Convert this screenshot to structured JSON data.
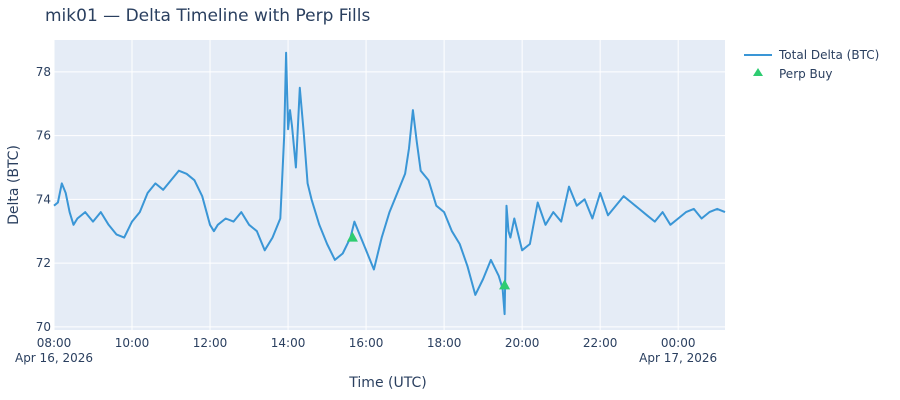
{
  "chart_data": {
    "type": "line",
    "title": "mik01 — Delta Timeline with Perp Fills",
    "xlabel": "Time (UTC)",
    "ylabel": "Delta (BTC)",
    "xlim": [
      8.0,
      25.2
    ],
    "ylim": [
      69.9,
      79.0
    ],
    "x_ticks": [
      {
        "x": 8,
        "label": "08:00",
        "sub": "Apr 16, 2026"
      },
      {
        "x": 10,
        "label": "10:00",
        "sub": ""
      },
      {
        "x": 12,
        "label": "12:00",
        "sub": ""
      },
      {
        "x": 14,
        "label": "14:00",
        "sub": ""
      },
      {
        "x": 16,
        "label": "16:00",
        "sub": ""
      },
      {
        "x": 18,
        "label": "18:00",
        "sub": ""
      },
      {
        "x": 20,
        "label": "20:00",
        "sub": ""
      },
      {
        "x": 22,
        "label": "22:00",
        "sub": ""
      },
      {
        "x": 24,
        "label": "00:00",
        "sub": "Apr 17, 2026"
      }
    ],
    "y_ticks": [
      70,
      72,
      74,
      76,
      78
    ],
    "colors": {
      "line": "#3a96d6",
      "marker": "#2ecc71",
      "plot_bg": "#e5ecf6",
      "grid": "#ffffff"
    },
    "series": [
      {
        "name": "Total Delta (BTC)",
        "kind": "line",
        "x": [
          8.0,
          8.1,
          8.2,
          8.3,
          8.4,
          8.5,
          8.6,
          8.8,
          9.0,
          9.2,
          9.4,
          9.6,
          9.8,
          10.0,
          10.2,
          10.4,
          10.6,
          10.8,
          11.0,
          11.2,
          11.4,
          11.6,
          11.8,
          12.0,
          12.1,
          12.2,
          12.4,
          12.6,
          12.8,
          13.0,
          13.2,
          13.4,
          13.6,
          13.8,
          13.9,
          13.95,
          14.0,
          14.05,
          14.1,
          14.2,
          14.3,
          14.4,
          14.5,
          14.6,
          14.8,
          15.0,
          15.2,
          15.4,
          15.6,
          15.7,
          15.8,
          16.0,
          16.2,
          16.4,
          16.6,
          16.8,
          17.0,
          17.1,
          17.2,
          17.3,
          17.4,
          17.6,
          17.8,
          18.0,
          18.2,
          18.4,
          18.6,
          18.8,
          19.0,
          19.2,
          19.4,
          19.5,
          19.55,
          19.6,
          19.65,
          19.7,
          19.8,
          20.0,
          20.2,
          20.4,
          20.6,
          20.8,
          21.0,
          21.2,
          21.4,
          21.6,
          21.8,
          22.0,
          22.2,
          22.4,
          22.6,
          22.8,
          23.0,
          23.2,
          23.4,
          23.6,
          23.8,
          24.0,
          24.2,
          24.4,
          24.6,
          24.8,
          25.0,
          25.2
        ],
        "y": [
          73.8,
          73.9,
          74.5,
          74.2,
          73.6,
          73.2,
          73.4,
          73.6,
          73.3,
          73.6,
          73.2,
          72.9,
          72.8,
          73.3,
          73.6,
          74.2,
          74.5,
          74.3,
          74.6,
          74.9,
          74.8,
          74.6,
          74.1,
          73.2,
          73.0,
          73.2,
          73.4,
          73.3,
          73.6,
          73.2,
          73.0,
          72.4,
          72.8,
          73.4,
          76.0,
          78.6,
          76.2,
          76.8,
          76.3,
          75.0,
          77.5,
          76.1,
          74.5,
          74.0,
          73.2,
          72.6,
          72.1,
          72.3,
          72.8,
          73.3,
          73.0,
          72.4,
          71.8,
          72.8,
          73.6,
          74.2,
          74.8,
          75.6,
          76.8,
          75.8,
          74.9,
          74.6,
          73.8,
          73.6,
          73.0,
          72.6,
          71.9,
          71.0,
          71.5,
          72.1,
          71.6,
          71.2,
          70.4,
          73.8,
          73.0,
          72.8,
          73.4,
          72.4,
          72.6,
          73.9,
          73.2,
          73.6,
          73.3,
          74.4,
          73.8,
          74.0,
          73.4,
          74.2,
          73.5,
          73.8,
          74.1,
          73.9,
          73.7,
          73.5,
          73.3,
          73.6,
          73.2,
          73.4,
          73.6,
          73.7,
          73.4,
          73.6,
          73.7,
          73.6
        ]
      },
      {
        "name": "Perp Buy",
        "kind": "marker",
        "x": [
          15.65,
          19.55
        ],
        "y": [
          72.8,
          71.3
        ]
      }
    ],
    "legend": [
      "Total Delta (BTC)",
      "Perp Buy"
    ],
    "legend_position": "top-right"
  }
}
